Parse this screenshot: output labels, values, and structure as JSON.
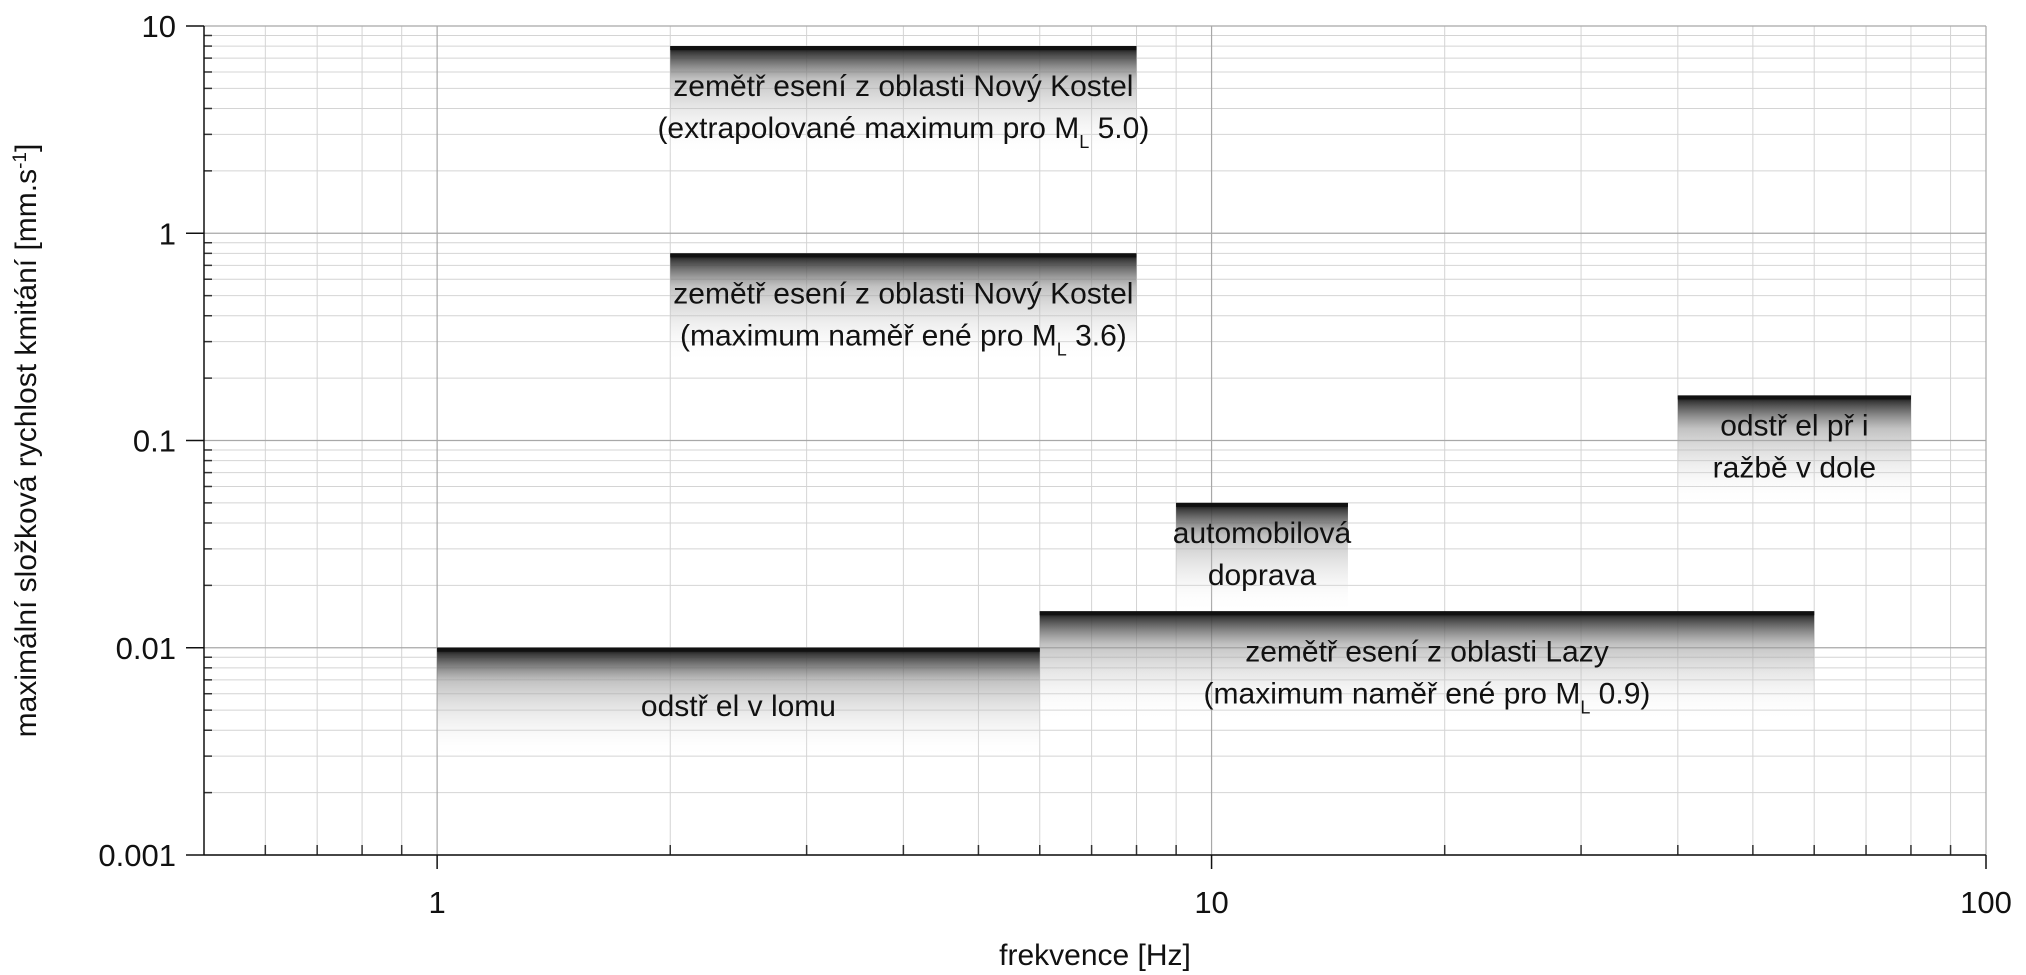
{
  "chart_data": {
    "type": "range_bar",
    "x_label": "frekvence [Hz]",
    "y_label": [
      {
        "t": "maximální složková rychlost kmitání [mm.s"
      },
      {
        "sup": "-1"
      },
      {
        "t": "]"
      }
    ],
    "x_log": true,
    "y_log": true,
    "grid": true,
    "minor_grid": true,
    "xlim": [
      0.5,
      100
    ],
    "xticks": [
      1,
      10,
      100
    ],
    "ylim": [
      0.001,
      10
    ],
    "yticks": [
      0.001,
      0.01,
      0.1,
      1,
      10
    ],
    "color": "#111111",
    "ranges": [
      {
        "x_start": 2,
        "x_end": 8,
        "value": 8,
        "label": [
          [
            {
              "t": "zemětř esení z oblasti Nový Kostel"
            }
          ],
          [
            {
              "t": "(extrapolované maximum pro M"
            },
            {
              "sub": "L"
            },
            {
              "t": " 5.0)"
            }
          ]
        ]
      },
      {
        "x_start": 2,
        "x_end": 8,
        "value": 0.8,
        "label": [
          [
            {
              "t": "zemětř esení z oblasti Nový Kostel"
            }
          ],
          [
            {
              "t": "(maximum naměř ené pro M"
            },
            {
              "sub": "L"
            },
            {
              "t": " 3.6)"
            }
          ]
        ]
      },
      {
        "x_start": 40,
        "x_end": 80,
        "value": 0.165,
        "label": [
          [
            {
              "t": "odstř el  př i"
            }
          ],
          [
            {
              "t": "ražbě v dole"
            }
          ]
        ]
      },
      {
        "x_start": 9,
        "x_end": 15,
        "value": 0.05,
        "label": [
          [
            {
              "t": "automobilová"
            }
          ],
          [
            {
              "t": "doprava"
            }
          ]
        ]
      },
      {
        "x_start": 6,
        "x_end": 60,
        "value": 0.015,
        "label": [
          [
            {
              "t": "zemětř esení z oblasti Lazy"
            }
          ],
          [
            {
              "t": "(maximum naměř ené pro M"
            },
            {
              "sub": "L"
            },
            {
              "t": " 0.9)"
            }
          ]
        ]
      },
      {
        "x_start": 1,
        "x_end": 6,
        "value": 0.01,
        "label": [
          [
            {
              "t": "odstř el v lomu"
            }
          ]
        ]
      }
    ]
  }
}
